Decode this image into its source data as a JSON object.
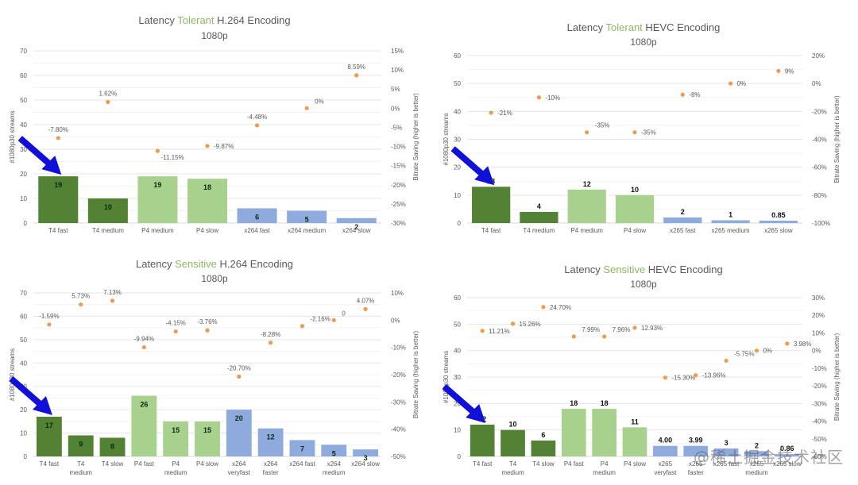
{
  "colors": {
    "t4": "#548235",
    "p4": "#a9d18e",
    "x": "#8faadc",
    "dot": "#ed9b4e",
    "title_accent": "#8cb861",
    "text": "#595959",
    "grid": "#e6e6e6",
    "arrow": "#1010d8"
  },
  "watermark": "@稀土掘金技术社区",
  "chart_data": [
    {
      "type": "bar",
      "title_prefix": "Latency ",
      "title_accent": "Tolerant",
      "title_suffix": " H.264 Encoding",
      "subtitle": "1080p",
      "ylabel": "#1080p30 streams",
      "y2label": "Bitrate Saving (higher is better)",
      "ylim": [
        0,
        70
      ],
      "yticks": [
        0,
        10,
        20,
        30,
        40,
        50,
        60,
        70
      ],
      "y2lim": [
        -30,
        15
      ],
      "y2ticks": [
        -30,
        -25,
        -20,
        -15,
        -10,
        -5,
        0,
        5,
        10,
        15
      ],
      "categories": [
        [
          "T4 fast"
        ],
        [
          "T4 medium"
        ],
        [
          "P4 medium"
        ],
        [
          "P4 slow"
        ],
        [
          "x264 fast"
        ],
        [
          "x264 medium"
        ],
        [
          "x264 slow"
        ]
      ],
      "groups": [
        "t4",
        "t4",
        "p4",
        "p4",
        "x",
        "x",
        "x"
      ],
      "values": [
        19,
        10,
        19,
        18,
        6,
        5,
        2
      ],
      "value_labels": [
        "19",
        "10",
        "19",
        "18",
        "6",
        "5",
        "2"
      ],
      "labels_inside": true,
      "savings": [
        -7.8,
        1.62,
        -11.15,
        -9.87,
        -4.48,
        0,
        8.59
      ],
      "saving_labels": [
        "-7.80%",
        "1.62%",
        "-11.15%",
        "-9.87%",
        "-4.48%",
        "0%",
        "8.59%"
      ],
      "saving_label_pos": [
        "above",
        "above",
        "below-right",
        "right",
        "above",
        "above-right",
        "above"
      ],
      "grid": true,
      "legend": "none",
      "highlight_arrow": "T4 fast"
    },
    {
      "type": "bar",
      "title_prefix": "Latency ",
      "title_accent": "Tolerant",
      "title_suffix": " HEVC Encoding",
      "subtitle": "1080p",
      "ylabel": "#1080p30 streams",
      "y2label": "Bitrate Saving (higher is better)",
      "ylim": [
        0,
        60
      ],
      "yticks": [
        0,
        10,
        20,
        30,
        40,
        50,
        60
      ],
      "y2lim": [
        -100,
        20
      ],
      "y2ticks": [
        -100,
        -80,
        -60,
        -40,
        -20,
        0,
        20
      ],
      "categories": [
        [
          "T4 fast"
        ],
        [
          "T4 medium"
        ],
        [
          "P4 medium"
        ],
        [
          "P4 slow"
        ],
        [
          "x265 fast"
        ],
        [
          "x265 medium"
        ],
        [
          "x265 slow"
        ]
      ],
      "groups": [
        "t4",
        "t4",
        "p4",
        "p4",
        "x",
        "x",
        "x"
      ],
      "values": [
        13,
        4,
        12,
        10,
        2,
        1,
        0.85
      ],
      "value_labels": [
        "13",
        "4",
        "12",
        "10",
        "2",
        "1",
        "0.85"
      ],
      "labels_inside": false,
      "savings": [
        -21,
        -10,
        -35,
        -35,
        -8,
        0,
        9
      ],
      "saving_labels": [
        "-21%",
        "-10%",
        "-35%",
        "-35%",
        "-8%",
        "0%",
        "9%"
      ],
      "saving_label_pos": [
        "right",
        "right",
        "above-right",
        "right",
        "right",
        "right",
        "right"
      ],
      "grid": true,
      "legend": "none",
      "highlight_arrow": "T4 fast"
    },
    {
      "type": "bar",
      "title_prefix": "Latency ",
      "title_accent": "Sensitive",
      "title_suffix": " H.264 Encoding",
      "subtitle": "1080p",
      "ylabel": "#1080p30 streams",
      "y2label": "Bitrate Saving (higher is better)",
      "ylim": [
        0,
        70
      ],
      "yticks": [
        0,
        10,
        20,
        30,
        40,
        50,
        60,
        70
      ],
      "y2lim": [
        -50,
        10
      ],
      "y2ticks": [
        -50,
        -40,
        -30,
        -20,
        -10,
        0,
        10
      ],
      "categories": [
        [
          "T4 fast"
        ],
        [
          "T4",
          "medium"
        ],
        [
          "T4 slow"
        ],
        [
          "P4 fast"
        ],
        [
          "P4",
          "medium"
        ],
        [
          "P4 slow"
        ],
        [
          "x264",
          "veryfast"
        ],
        [
          "x264",
          "faster"
        ],
        [
          "x264 fast"
        ],
        [
          "x264",
          "medium"
        ],
        [
          "x264 slow"
        ]
      ],
      "groups": [
        "t4",
        "t4",
        "t4",
        "p4",
        "p4",
        "p4",
        "x",
        "x",
        "x",
        "x",
        "x"
      ],
      "values": [
        17,
        9,
        8,
        26,
        15,
        15,
        20,
        12,
        7,
        5,
        3
      ],
      "value_labels": [
        "17",
        "9",
        "8",
        "26",
        "15",
        "15",
        "20",
        "12",
        "7",
        "5",
        "3"
      ],
      "labels_inside": true,
      "savings": [
        -1.59,
        5.73,
        7.13,
        -9.94,
        -4.15,
        -3.76,
        -20.7,
        -8.28,
        -2.16,
        0,
        4.07
      ],
      "saving_labels": [
        "-1.59%",
        "5.73%",
        "7.13%",
        "-9.94%",
        "-4.15%",
        "-3.76%",
        "-20.70%",
        "-8.28%",
        "-2.16%",
        "0",
        "4.07%"
      ],
      "saving_label_pos": [
        "above",
        "above",
        "above",
        "above",
        "above",
        "above",
        "above",
        "above",
        "above-right",
        "above-right",
        "above"
      ],
      "grid": true,
      "legend": "none",
      "highlight_arrow": "T4 fast"
    },
    {
      "type": "bar",
      "title_prefix": "Latency ",
      "title_accent": "Sensitive",
      "title_suffix": " HEVC Encoding",
      "subtitle": "1080p",
      "ylabel": "#1080p30 streams",
      "y2label": "Bitrate Saving (higher is better)",
      "ylim": [
        0,
        60
      ],
      "yticks": [
        0,
        10,
        20,
        30,
        40,
        50,
        60
      ],
      "y2lim": [
        -60,
        30
      ],
      "y2ticks": [
        -60,
        -50,
        -40,
        -30,
        -20,
        -10,
        0,
        10,
        20,
        30
      ],
      "categories": [
        [
          "T4 fast"
        ],
        [
          "T4",
          "medium"
        ],
        [
          "T4 slow"
        ],
        [
          "P4 fast"
        ],
        [
          "P4",
          "medium"
        ],
        [
          "P4 slow"
        ],
        [
          "x265",
          "veryfast"
        ],
        [
          "x265",
          "faster"
        ],
        [
          "x265 fast"
        ],
        [
          "x265",
          "medium"
        ],
        [
          "x265 slow"
        ]
      ],
      "groups": [
        "t4",
        "t4",
        "t4",
        "p4",
        "p4",
        "p4",
        "x",
        "x",
        "x",
        "x",
        "x"
      ],
      "values": [
        12,
        10,
        6,
        18,
        18,
        11,
        4.0,
        3.99,
        3,
        2,
        0.86
      ],
      "value_labels": [
        "12",
        "10",
        "6",
        "18",
        "18",
        "11",
        "4.00",
        "3.99",
        "3",
        "2",
        "0.86"
      ],
      "labels_inside": false,
      "savings": [
        11.21,
        15.26,
        24.7,
        7.99,
        7.96,
        12.93,
        -15.3,
        -13.96,
        -5.75,
        0,
        3.98
      ],
      "saving_labels": [
        "11.21%",
        "15.26%",
        "24.70%",
        "7.99%",
        "7.96%",
        "12.93%",
        "-15.30%",
        "-13.96%",
        "-5.75%",
        "0%",
        "3.98%"
      ],
      "saving_label_pos": [
        "right",
        "right",
        "right",
        "above-right",
        "above-right",
        "right",
        "right",
        "right",
        "above-right",
        "right",
        "right"
      ],
      "grid": true,
      "legend": "none",
      "highlight_arrow": "T4 fast"
    }
  ]
}
